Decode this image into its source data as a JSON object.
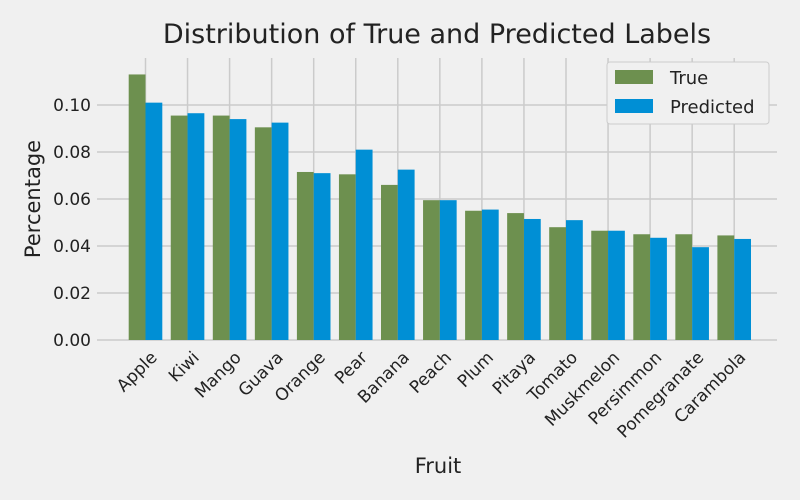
{
  "chart_data": {
    "type": "bar",
    "title": "Distribution of True and Predicted Labels",
    "xlabel": "Fruit",
    "ylabel": "Percentage",
    "ylim": [
      0,
      0.12
    ],
    "yticks": [
      "0.00",
      "0.02",
      "0.04",
      "0.06",
      "0.08",
      "0.10"
    ],
    "grid": true,
    "legend_position": "top-right",
    "categories": [
      "Apple",
      "Kiwi",
      "Mango",
      "Guava",
      "Orange",
      "Pear",
      "Banana",
      "Peach",
      "Plum",
      "Pitaya",
      "Tomato",
      "Muskmelon",
      "Persimmon",
      "Pomegranate",
      "Carambola"
    ],
    "series": [
      {
        "name": "True",
        "color": "#6d904f",
        "values": [
          0.113,
          0.0955,
          0.0955,
          0.0905,
          0.0715,
          0.0705,
          0.066,
          0.0595,
          0.055,
          0.054,
          0.048,
          0.0465,
          0.045,
          0.045,
          0.0445
        ]
      },
      {
        "name": "Predicted",
        "color": "#008fd5",
        "values": [
          0.101,
          0.0965,
          0.094,
          0.0925,
          0.071,
          0.081,
          0.0725,
          0.0595,
          0.0555,
          0.0515,
          0.051,
          0.0465,
          0.0435,
          0.0395,
          0.043
        ]
      }
    ]
  }
}
